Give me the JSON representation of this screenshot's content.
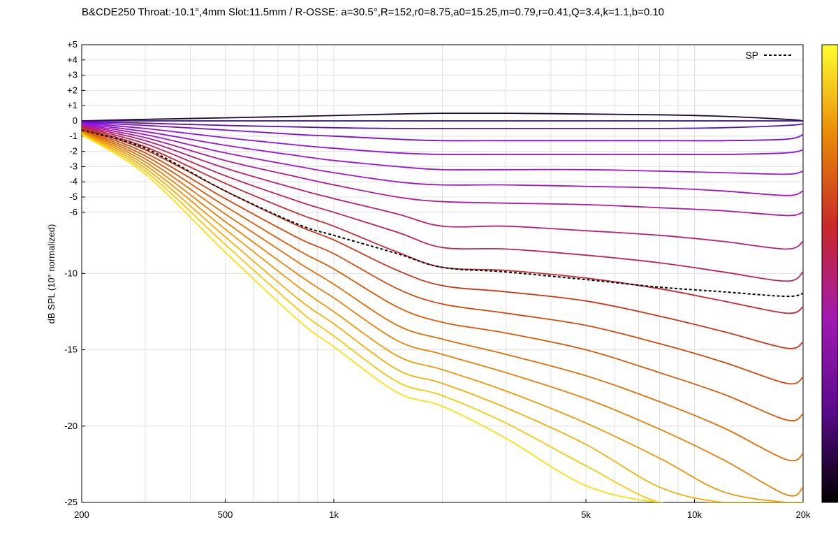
{
  "chart_data": {
    "type": "line",
    "title": "B&CDE250 Throat:-10.1°,4mm Slot:11.5mm / R-OSSE: a=30.5°,R=152,r0=8.75,a0=15.25,m=0.79,r=0.41,Q=3.4,k=1.1,b=0.10",
    "xlabel": "",
    "ylabel": "dB SPL (10° normalized)",
    "x_scale": "log",
    "xlim": [
      200,
      20000
    ],
    "ylim": [
      -25,
      5
    ],
    "grid": true,
    "legend_position": "top-right",
    "colorbar": "gnuplot palette (black-purple-red-orange-yellow)",
    "x_ticks": [
      {
        "value": 200,
        "label": "200"
      },
      {
        "value": 500,
        "label": "500"
      },
      {
        "value": 1000,
        "label": "1k"
      },
      {
        "value": 5000,
        "label": "5k"
      },
      {
        "value": 10000,
        "label": "10k"
      },
      {
        "value": 20000,
        "label": "20k"
      }
    ],
    "y_ticks": [
      {
        "value": 5,
        "label": "+5"
      },
      {
        "value": 4,
        "label": "+4"
      },
      {
        "value": 3,
        "label": "+3"
      },
      {
        "value": 2,
        "label": "+2"
      },
      {
        "value": 1,
        "label": "+1"
      },
      {
        "value": 0,
        "label": "0"
      },
      {
        "value": -1,
        "label": "-1"
      },
      {
        "value": -2,
        "label": "-2"
      },
      {
        "value": -3,
        "label": "-3"
      },
      {
        "value": -4,
        "label": "-4"
      },
      {
        "value": -5,
        "label": "-5"
      },
      {
        "value": -6,
        "label": "-6"
      },
      {
        "value": -10,
        "label": "-10"
      },
      {
        "value": -15,
        "label": "-15"
      },
      {
        "value": -20,
        "label": "-20"
      },
      {
        "value": -25,
        "label": "-25"
      }
    ],
    "x": [
      200,
      300,
      500,
      800,
      1000,
      1500,
      2000,
      3000,
      5000,
      8000,
      12000,
      18000,
      20000
    ],
    "series": [
      {
        "color": "#1a0a30",
        "values": [
          0,
          0.1,
          0.2,
          0.3,
          0.35,
          0.45,
          0.5,
          0.5,
          0.45,
          0.4,
          0.3,
          0.1,
          0.0
        ]
      },
      {
        "color": "#3d0a78",
        "values": [
          0,
          0,
          0,
          0,
          0,
          0,
          0,
          0,
          0,
          0,
          0,
          0,
          0
        ]
      },
      {
        "color": "#5a10b8",
        "values": [
          -0.05,
          -0.15,
          -0.3,
          -0.4,
          -0.45,
          -0.5,
          -0.5,
          -0.5,
          -0.5,
          -0.5,
          -0.45,
          -0.3,
          -0.2
        ]
      },
      {
        "color": "#7a10d8",
        "values": [
          -0.1,
          -0.3,
          -0.6,
          -0.9,
          -1.0,
          -1.2,
          -1.3,
          -1.3,
          -1.3,
          -1.3,
          -1.3,
          -1.2,
          -0.9
        ]
      },
      {
        "color": "#8c14e6",
        "values": [
          -0.15,
          -0.5,
          -1.1,
          -1.6,
          -1.8,
          -2.1,
          -2.2,
          -2.2,
          -2.2,
          -2.2,
          -2.2,
          -2.1,
          -1.9
        ]
      },
      {
        "color": "#9a16d8",
        "values": [
          -0.2,
          -0.7,
          -1.6,
          -2.3,
          -2.6,
          -3.0,
          -3.2,
          -3.2,
          -3.2,
          -3.3,
          -3.4,
          -3.5,
          -3.3
        ]
      },
      {
        "color": "#a418c0",
        "values": [
          -0.25,
          -0.9,
          -2.1,
          -3.0,
          -3.4,
          -4.0,
          -4.2,
          -4.2,
          -4.3,
          -4.4,
          -4.6,
          -4.9,
          -4.6
        ]
      },
      {
        "color": "#ae1c9c",
        "values": [
          -0.3,
          -1.1,
          -2.6,
          -3.7,
          -4.2,
          -5.0,
          -5.3,
          -5.4,
          -5.5,
          -5.7,
          -5.9,
          -6.2,
          -6.0
        ]
      },
      {
        "color": "#b6207a",
        "values": [
          -0.35,
          -1.3,
          -3.1,
          -4.5,
          -5.1,
          -6.1,
          -6.9,
          -6.9,
          -7.2,
          -7.5,
          -7.9,
          -8.4,
          -7.9
        ]
      },
      {
        "color": "#bd2458",
        "values": [
          -0.4,
          -1.5,
          -3.6,
          -5.3,
          -6.0,
          -7.3,
          -8.3,
          -8.4,
          -8.8,
          -9.3,
          -9.9,
          -10.5,
          -9.9
        ]
      },
      {
        "color": "#c22c34",
        "values": [
          -0.45,
          -1.7,
          -4.1,
          -6.1,
          -6.9,
          -8.6,
          -9.6,
          -9.8,
          -10.3,
          -11.0,
          -11.8,
          -12.6,
          -12.2
        ]
      },
      {
        "color": "#c83818",
        "values": [
          -0.5,
          -1.9,
          -4.6,
          -6.9,
          -7.8,
          -9.8,
          -10.8,
          -11.2,
          -11.8,
          -12.8,
          -13.8,
          -14.9,
          -14.5
        ]
      },
      {
        "color": "#d04a0c",
        "values": [
          -0.55,
          -2.1,
          -5.1,
          -7.7,
          -8.7,
          -11.0,
          -12.0,
          -12.6,
          -13.4,
          -14.6,
          -15.8,
          -17.2,
          -16.8
        ]
      },
      {
        "color": "#d85c08",
        "values": [
          -0.6,
          -2.3,
          -5.6,
          -8.5,
          -9.7,
          -12.2,
          -13.2,
          -13.9,
          -15.0,
          -16.5,
          -17.9,
          -19.6,
          -19.2
        ]
      },
      {
        "color": "#e06e06",
        "values": [
          -0.65,
          -2.5,
          -6.1,
          -9.3,
          -10.7,
          -13.4,
          -14.3,
          -15.3,
          -16.7,
          -18.4,
          -20.1,
          -22.2,
          -21.8
        ]
      },
      {
        "color": "#e88206",
        "values": [
          -0.7,
          -2.7,
          -6.6,
          -10.1,
          -11.6,
          -14.4,
          -15.3,
          -16.5,
          -18.2,
          -20.2,
          -22.2,
          -24.5,
          -24.0
        ]
      },
      {
        "color": "#ee9806",
        "values": [
          -0.75,
          -2.9,
          -7.1,
          -10.9,
          -12.5,
          -15.4,
          -16.3,
          -17.7,
          -19.8,
          -22.1,
          -24.3,
          -25,
          -25
        ]
      },
      {
        "color": "#f4b008",
        "values": [
          -0.8,
          -3.1,
          -7.6,
          -11.7,
          -13.3,
          -16.3,
          -17.2,
          -18.8,
          -21.2,
          -24.0,
          -25,
          -25,
          -25
        ]
      },
      {
        "color": "#f8c80a",
        "values": [
          -0.85,
          -3.3,
          -8.1,
          -12.4,
          -14.1,
          -17.1,
          -18.0,
          -19.8,
          -22.6,
          -25,
          -25,
          -25,
          -25
        ]
      },
      {
        "color": "#fce010",
        "values": [
          -0.9,
          -3.5,
          -8.6,
          -13.1,
          -14.8,
          -17.8,
          -18.7,
          -20.8,
          -23.9,
          -25,
          -25,
          -25,
          -25
        ]
      }
    ],
    "sp_series": {
      "name": "SP",
      "color": "#000000",
      "dashed": true,
      "values": [
        -0.6,
        -1.8,
        -4.6,
        -6.8,
        -7.5,
        -8.7,
        -9.6,
        -9.9,
        -10.4,
        -10.9,
        -11.2,
        -11.5,
        -11.3
      ]
    }
  }
}
